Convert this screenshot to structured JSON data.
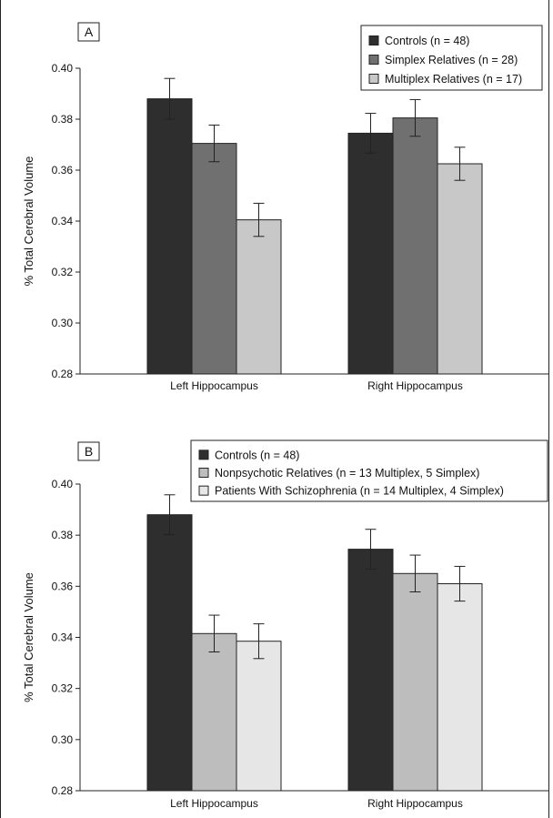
{
  "chart_data": [
    {
      "type": "bar",
      "panel": "A",
      "ylabel": "% Total Cerebral Volume",
      "xlabel": "",
      "ylim": [
        0.28,
        0.4
      ],
      "yticks": [
        "0.28",
        "0.30",
        "0.32",
        "0.34",
        "0.36",
        "0.38",
        "0.40"
      ],
      "categories": [
        "Left Hippocampus",
        "Right Hippocampus"
      ],
      "legend_position": "top-right",
      "series": [
        {
          "name": "Controls (n = 48)",
          "color": "#2e2e2e",
          "values": [
            0.388,
            0.3745
          ],
          "errors": [
            0.008,
            0.0078
          ]
        },
        {
          "name": "Simplex Relatives (n = 28)",
          "color": "#707070",
          "values": [
            0.3705,
            0.3805
          ],
          "errors": [
            0.0072,
            0.0072
          ]
        },
        {
          "name": "Multiplex Relatives (n = 17)",
          "color": "#c8c8c8",
          "values": [
            0.3405,
            0.3625
          ],
          "errors": [
            0.0065,
            0.0065
          ]
        }
      ]
    },
    {
      "type": "bar",
      "panel": "B",
      "ylabel": "% Total Cerebral Volume",
      "xlabel": "",
      "ylim": [
        0.28,
        0.4
      ],
      "yticks": [
        "0.28",
        "0.30",
        "0.32",
        "0.34",
        "0.36",
        "0.38",
        "0.40"
      ],
      "categories": [
        "Left Hippocampus",
        "Right Hippocampus"
      ],
      "legend_position": "top-right",
      "series": [
        {
          "name": "Controls (n = 48)",
          "color": "#2e2e2e",
          "values": [
            0.388,
            0.3745
          ],
          "errors": [
            0.0078,
            0.0078
          ]
        },
        {
          "name": "Nonpsychotic Relatives (n = 13 Multiplex, 5 Simplex)",
          "color": "#bdbdbd",
          "values": [
            0.3415,
            0.365
          ],
          "errors": [
            0.0072,
            0.0072
          ]
        },
        {
          "name": "Patients With Schizophrenia (n = 14 Multiplex, 4 Simplex)",
          "color": "#e6e6e6",
          "values": [
            0.3385,
            0.361
          ],
          "errors": [
            0.0068,
            0.0068
          ]
        }
      ]
    }
  ]
}
